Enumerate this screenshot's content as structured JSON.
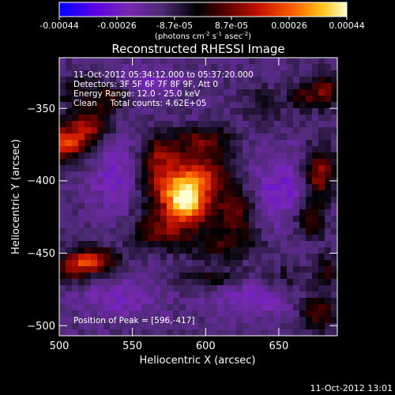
{
  "colors": {
    "background": "#000000",
    "text": "#ffffff",
    "colormap": [
      "#0000ff",
      "#5a00e6",
      "#7828b4",
      "#4b2a73",
      "#000000",
      "#5a0000",
      "#c81400",
      "#ff6400",
      "#ffc81e",
      "#ffffd2"
    ]
  },
  "colorbar": {
    "ticks": [
      "-0.00044",
      "-0.00026",
      "-8.7e-05",
      "8.7e-05",
      "0.00026",
      "0.00044"
    ],
    "units_base": "(photons cm",
    "units_exp1": "-2",
    "units_mid": " s",
    "units_exp2": "-1",
    "units_tail": " asec",
    "units_exp3": "-2",
    "units_close": ")"
  },
  "annotations": {
    "time_range": "11-Oct-2012 05:34:12.000 to 05:37:20.000",
    "detectors": "Detectors: 3F 5F 6F 7F 8F 9F, Att 0",
    "energy": "Energy Range: 12.0 - 25.0 keV",
    "clean": "Clean     Total counts: 4.62E+05",
    "peak": "Position of Peak = [596,-417]"
  },
  "footer": {
    "timestamp": "11-Oct-2012 13:01"
  },
  "chart_data": {
    "type": "heatmap",
    "title": "Reconstructed RHESSI Image",
    "xlabel": "Heliocentric X (arcsec)",
    "ylabel": "Heliocentric Y (arcsec)",
    "xlim": [
      500,
      690
    ],
    "ylim": [
      -510,
      -318
    ],
    "xticks": [
      "500",
      "550",
      "600",
      "650"
    ],
    "yticks": [
      "−350",
      "−400",
      "−450",
      "−500"
    ],
    "zlim": [
      -0.00044,
      0.00044
    ],
    "grid": false,
    "peak_position": [
      596,
      -417
    ],
    "blobs": [
      {
        "x": 588,
        "y": -418,
        "amp": 0.00046,
        "sx": 10,
        "sy": 11
      },
      {
        "x": 575,
        "y": -405,
        "amp": 0.0003,
        "sx": 14,
        "sy": 14
      },
      {
        "x": 602,
        "y": -398,
        "amp": 0.00022,
        "sx": 12,
        "sy": 10
      },
      {
        "x": 620,
        "y": -425,
        "amp": 0.00022,
        "sx": 10,
        "sy": 11
      },
      {
        "x": 568,
        "y": -438,
        "amp": 0.0002,
        "sx": 13,
        "sy": 8
      },
      {
        "x": 598,
        "y": -375,
        "amp": 0.0002,
        "sx": 14,
        "sy": 7
      },
      {
        "x": 568,
        "y": -383,
        "amp": 0.00016,
        "sx": 9,
        "sy": 8
      },
      {
        "x": 610,
        "y": -448,
        "amp": 0.00014,
        "sx": 18,
        "sy": 7
      },
      {
        "x": 503,
        "y": -377,
        "amp": 0.00036,
        "sx": 9,
        "sy": 8
      },
      {
        "x": 520,
        "y": -365,
        "amp": 0.00025,
        "sx": 9,
        "sy": 10
      },
      {
        "x": 535,
        "y": -345,
        "amp": 0.00016,
        "sx": 8,
        "sy": 7
      },
      {
        "x": 510,
        "y": -340,
        "amp": 0.00012,
        "sx": 10,
        "sy": 8
      },
      {
        "x": 522,
        "y": -458,
        "amp": 0.00034,
        "sx": 11,
        "sy": 6
      },
      {
        "x": 508,
        "y": -465,
        "amp": 0.00018,
        "sx": 8,
        "sy": 6
      },
      {
        "x": 605,
        "y": -470,
        "amp": 0.00012,
        "sx": 16,
        "sy": 5
      },
      {
        "x": 678,
        "y": -398,
        "amp": 0.00028,
        "sx": 7,
        "sy": 12
      },
      {
        "x": 672,
        "y": -430,
        "amp": 0.00018,
        "sx": 7,
        "sy": 9
      },
      {
        "x": 683,
        "y": -340,
        "amp": 0.00022,
        "sx": 7,
        "sy": 8
      },
      {
        "x": 668,
        "y": -345,
        "amp": 0.00016,
        "sx": 7,
        "sy": 7
      },
      {
        "x": 678,
        "y": -495,
        "amp": 0.00018,
        "sx": 9,
        "sy": 9
      },
      {
        "x": 683,
        "y": -465,
        "amp": 0.00014,
        "sx": 6,
        "sy": 8
      },
      {
        "x": 640,
        "y": -350,
        "amp": 0.0001,
        "sx": 10,
        "sy": 8
      },
      {
        "x": 655,
        "y": -470,
        "amp": 8e-05,
        "sx": 9,
        "sy": 7
      },
      {
        "x": 540,
        "y": -400,
        "amp": -0.00012,
        "sx": 12,
        "sy": 16
      },
      {
        "x": 650,
        "y": -410,
        "amp": -0.00012,
        "sx": 14,
        "sy": 16
      },
      {
        "x": 540,
        "y": -485,
        "amp": -0.0001,
        "sx": 18,
        "sy": 9
      },
      {
        "x": 630,
        "y": -485,
        "amp": -0.0001,
        "sx": 18,
        "sy": 9
      },
      {
        "x": 560,
        "y": -335,
        "amp": -8e-05,
        "sx": 14,
        "sy": 9
      }
    ]
  }
}
